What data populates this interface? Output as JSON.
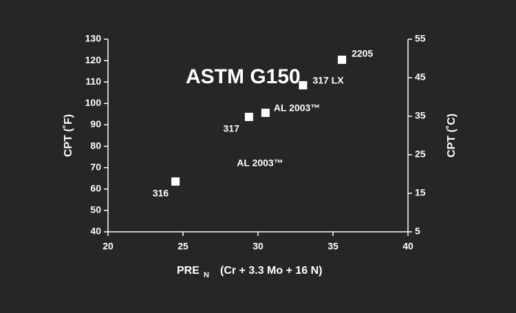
{
  "chart_data": {
    "type": "scatter",
    "title": "ASTM G150",
    "x_label": {
      "main": "PRE",
      "subscript": "N",
      "formula": "(Cr + 3.3 Mo + 16 N)"
    },
    "y_label": "CPT (˚F)",
    "y2_label": "CPT (˚C)",
    "x": [
      24.5,
      29.4,
      30.5,
      33.0,
      35.6
    ],
    "values": [
      63.5,
      93.7,
      95.6,
      108.5,
      120.4
    ],
    "point_labels": [
      "316",
      "317",
      "AL 2003™",
      "317 LX",
      "2205"
    ],
    "annotation": "AL 2003™",
    "color": "#ffffff",
    "xlim": [
      20,
      40
    ],
    "xticks": [
      20,
      25,
      30,
      35,
      40
    ],
    "ylim": [
      40,
      130
    ],
    "yticks": [
      40,
      50,
      60,
      70,
      80,
      90,
      100,
      110,
      120,
      130
    ],
    "y2lim": [
      5,
      55
    ],
    "y2ticks": [
      5,
      15,
      25,
      35,
      45,
      55
    ]
  }
}
